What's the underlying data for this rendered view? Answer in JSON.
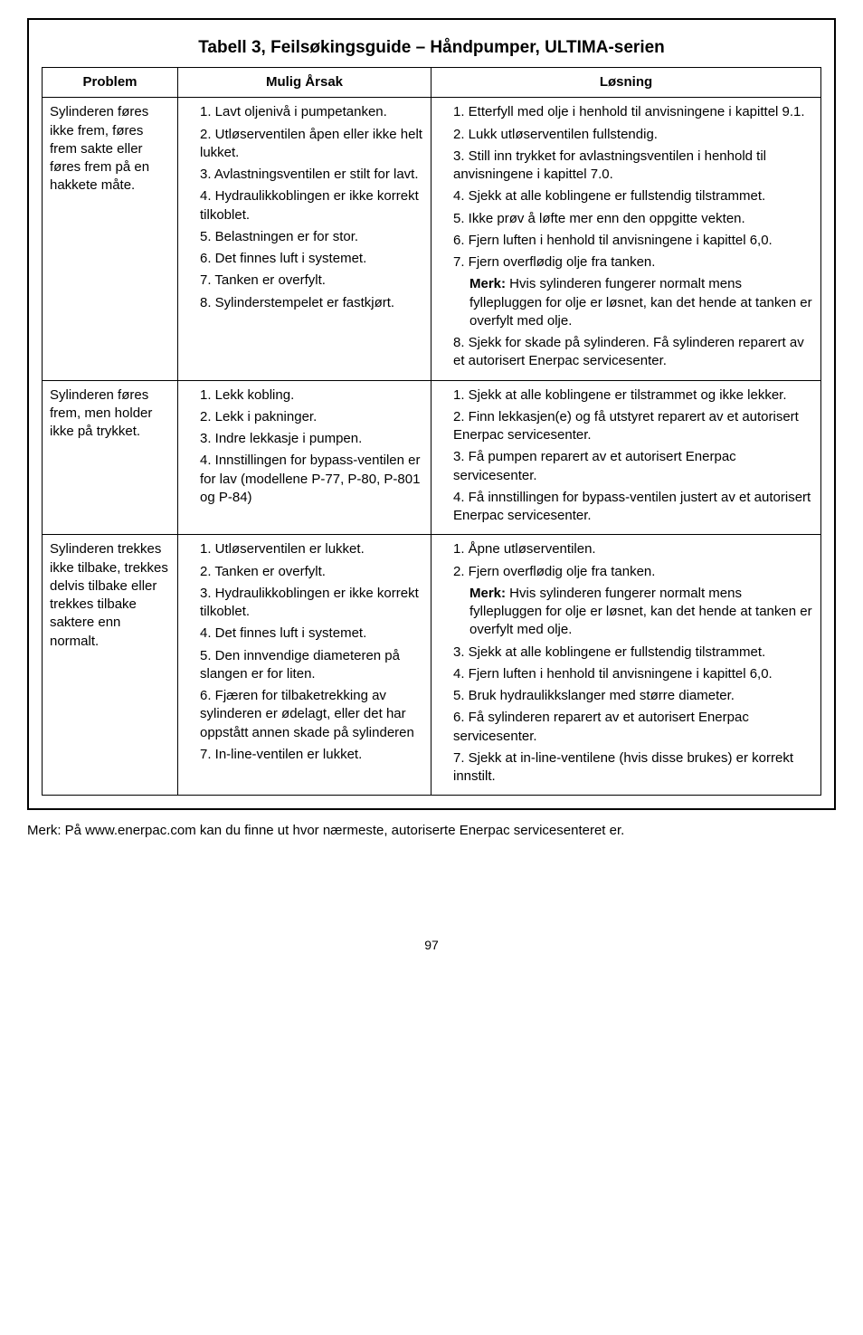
{
  "title": "Tabell 3, Feilsøkingsguide – Håndpumper, ULTIMA-serien",
  "headers": {
    "problem": "Problem",
    "cause": "Mulig Årsak",
    "solution": "Løsning"
  },
  "rows": [
    {
      "problem": "Sylinderen føres ikke frem, føres frem sakte eller føres frem på en hakkete måte.",
      "causes": [
        "1. Lavt oljenivå i pumpetanken.",
        "2. Utløserventilen åpen eller ikke helt lukket.",
        "3. Avlastningsventilen er stilt for lavt.",
        "4. Hydraulikkoblingen er ikke korrekt tilkoblet.",
        "5. Belastningen er for stor.",
        "6. Det finnes luft i systemet.",
        "7. Tanken er overfylt.",
        "8. Sylinderstempelet er fastkjørt."
      ],
      "solutions": [
        "1. Etterfyll med olje i henhold til anvisningene i kapittel 9.1.",
        "2. Lukk utløserventilen fullstendig.",
        "3. Still inn trykket for avlastningsventilen i henhold til anvisningene i kapittel 7.0.",
        "4. Sjekk at alle koblingene er fullstendig tilstrammet.",
        "5. Ikke prøv å løfte mer enn den oppgitte vekten.",
        "6. Fjern luften i henhold til anvisningene i kapittel 6,0.",
        "7. Fjern overflødig olje fra tanken.",
        "<b>Merk:</b> Hvis sylinderen fungerer normalt mens fyllepluggen for olje er løsnet, kan det hende at tanken er overfylt med olje.",
        "8. Sjekk for skade på sylinderen. Få sylinderen reparert av et autorisert Enerpac servicesenter."
      ]
    },
    {
      "problem": "Sylinderen føres frem, men holder ikke på trykket.",
      "causes": [
        "1. Lekk kobling.",
        "2. Lekk i pakninger.",
        "3. Indre lekkasje i pumpen.",
        "4. Innstillingen for bypass-ventilen er for lav (modellene P-77, P-80, P-801 og P-84)"
      ],
      "solutions": [
        "1. Sjekk at alle koblingene er tilstrammet og ikke lekker.",
        "2. Finn lekkasjen(e) og få utstyret reparert av et autorisert Enerpac servicesenter.",
        "3. Få pumpen reparert av et autorisert Enerpac servicesenter.",
        "4. Få innstillingen for bypass-ventilen justert av et autorisert Enerpac servicesenter."
      ]
    },
    {
      "problem": "Sylinderen trekkes ikke tilbake, trekkes delvis tilbake eller trekkes tilbake saktere enn normalt.",
      "causes": [
        "1. Utløserventilen er lukket.",
        "2. Tanken er overfylt.",
        "3. Hydraulikkoblingen er ikke korrekt tilkoblet.",
        "4. Det finnes luft i systemet.",
        "5. Den innvendige diameteren på slangen er for liten.",
        "6. Fjæren for tilbaketrekking av sylinderen er ødelagt, eller det har oppstått annen skade på sylinderen",
        "7. In-line-ventilen er lukket."
      ],
      "solutions": [
        "1. Åpne utløserventilen.",
        "2. Fjern overflødig olje fra tanken.",
        "<b>Merk:</b> Hvis sylinderen fungerer normalt mens fyllepluggen for olje er løsnet, kan det hende at tanken er overfylt med olje.",
        "3. Sjekk at alle koblingene er fullstendig tilstrammet.",
        "4. Fjern luften i henhold til anvisningene i kapittel 6,0.",
        "5. Bruk hydraulikkslanger med større diameter.",
        "6. Få sylinderen reparert av et autorisert Enerpac servicesenter.",
        "7. Sjekk at in-line-ventilene (hvis disse brukes) er korrekt innstilt."
      ]
    }
  ],
  "footnote": "Merk: På www.enerpac.com kan du finne ut hvor nærmeste, autoriserte Enerpac servicesenteret er.",
  "page_number": "97"
}
